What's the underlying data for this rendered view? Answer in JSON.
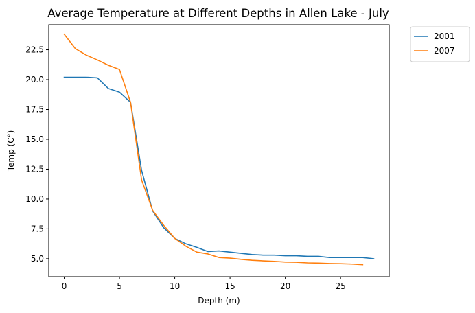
{
  "chart_data": {
    "type": "line",
    "title": "Average Temperature at Different Depths in Allen Lake - July",
    "xlabel": "Depth (m)",
    "ylabel": "Temp (C°)",
    "xlim": [
      -1.4,
      29.4
    ],
    "ylim": [
      3.5,
      24.6
    ],
    "xticks": [
      0,
      5,
      10,
      15,
      20,
      25
    ],
    "xtick_labels": [
      "0",
      "5",
      "10",
      "15",
      "20",
      "25"
    ],
    "yticks": [
      5.0,
      7.5,
      10.0,
      12.5,
      15.0,
      17.5,
      20.0,
      22.5
    ],
    "ytick_labels": [
      "5.0",
      "7.5",
      "10.0",
      "12.5",
      "15.0",
      "17.5",
      "20.0",
      "22.5"
    ],
    "grid": false,
    "legend_position": "outside-top-right",
    "series": [
      {
        "name": "2001",
        "color": "#1f77b4",
        "x": [
          0,
          1,
          2,
          3,
          4,
          5,
          6,
          7,
          8,
          9,
          10,
          11,
          12,
          13,
          14,
          15,
          16,
          17,
          18,
          19,
          20,
          21,
          22,
          23,
          24,
          25,
          26,
          27,
          28
        ],
        "y": [
          20.2,
          20.2,
          20.2,
          20.15,
          19.25,
          18.95,
          18.1,
          12.4,
          9.0,
          7.6,
          6.7,
          6.25,
          5.95,
          5.6,
          5.65,
          5.55,
          5.45,
          5.35,
          5.3,
          5.3,
          5.25,
          5.25,
          5.2,
          5.2,
          5.1,
          5.1,
          5.1,
          5.1,
          5.0
        ]
      },
      {
        "name": "2007",
        "color": "#ff7f0e",
        "x": [
          0,
          1,
          2,
          3,
          4,
          5,
          6,
          7,
          8,
          9,
          10,
          11,
          12,
          13,
          14,
          15,
          16,
          17,
          18,
          19,
          20,
          21,
          22,
          23,
          24,
          25,
          26,
          27
        ],
        "y": [
          23.8,
          22.6,
          22.05,
          21.65,
          21.2,
          20.85,
          18.1,
          11.6,
          9.05,
          7.8,
          6.7,
          6.05,
          5.55,
          5.4,
          5.1,
          5.05,
          4.95,
          4.87,
          4.82,
          4.78,
          4.72,
          4.7,
          4.65,
          4.63,
          4.6,
          4.58,
          4.55,
          4.5
        ]
      }
    ]
  }
}
